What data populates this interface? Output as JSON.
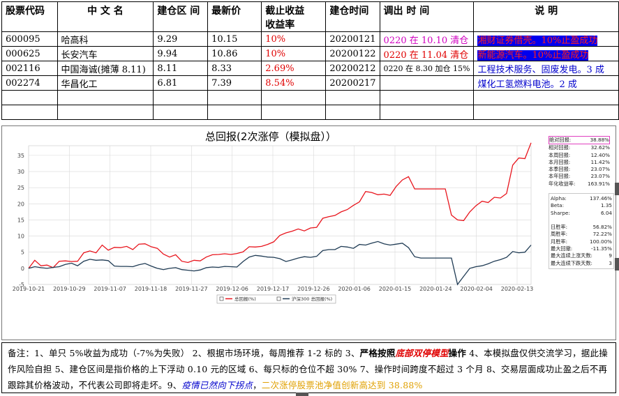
{
  "table": {
    "headers": [
      "股票代码",
      "中 文 名",
      "建仓区 间",
      "最新价",
      "截止收益",
      "收益率",
      "建仓时间",
      "调出 时 间",
      "说   明"
    ],
    "rows": [
      {
        "code": "600095",
        "name": "哈高科",
        "range": "9.29",
        "price": "10.15",
        "ret": "10%",
        "date": "20200121",
        "out": "0220 在 10.10 清仓",
        "desc": "湘财证券借壳。10%止盈成功"
      },
      {
        "code": "000625",
        "name": "长安汽车",
        "range": "9.94",
        "price": "10.86",
        "ret": "10%",
        "date": "20200122",
        "out": "0220 在 11.04 清仓",
        "desc": "新能源汽车。10%止盈成功"
      },
      {
        "code": "002116",
        "name": "中国海诚(摊薄 8.11)",
        "range": "8.11",
        "price": "8.33",
        "ret": "2.69%",
        "date": "20200212",
        "out": "0220 在 8.30 加仓 15%",
        "desc": "工程技术服务、固废发电。3 成"
      },
      {
        "code": "002274",
        "name": "华昌化工",
        "range": "6.81",
        "price": "7.39",
        "ret": "8.54%",
        "date": "20200217",
        "out": "",
        "desc": "煤化工氢燃料电池。2 成"
      }
    ]
  },
  "chart_data": {
    "type": "line",
    "title": "总回报(2次涨停（模拟盘））",
    "x_ticks": [
      "2019-10-21",
      "2019-10-29",
      "2019-11-07",
      "2019-11-18",
      "2019-11-27",
      "2019-12-06",
      "2019-12-17",
      "2019-12-26",
      "2020-01-06",
      "2020-01-15",
      "2020-01-24",
      "2020-02-04",
      "2020-02-13"
    ],
    "y_ticks": [
      -5,
      0,
      5,
      10,
      15,
      20,
      25,
      30,
      35
    ],
    "ylim": [
      -5,
      38
    ],
    "series": [
      {
        "name": "总回报(%)",
        "color": "#e8141c",
        "values": [
          0,
          2.5,
          0.8,
          1,
          0.2,
          2.2,
          2.3,
          2.1,
          2.2,
          4.8,
          5.4,
          4.8,
          7.2,
          5.6,
          6.5,
          6.4,
          6.8,
          5.8,
          7.5,
          7.6,
          6.7,
          6.2,
          4.4,
          3.5,
          4.2,
          2.2,
          1.8,
          2.5,
          2.3,
          3.5,
          4.2,
          4.3,
          4.5,
          4.3,
          4.6,
          5.1,
          6.7,
          6.6,
          6.8,
          7.4,
          8.2,
          10.2,
          11,
          11.5,
          12.2,
          11.6,
          12.5,
          12.7,
          15.5,
          16,
          16.4,
          17.5,
          18.2,
          19.5,
          20.6,
          23.8,
          23.5,
          22.8,
          23,
          22.6,
          25.4,
          27.4,
          28.4,
          24.6,
          24.6,
          24.6,
          24.6,
          24.6,
          24.6,
          16.5,
          15,
          14.8,
          17.5,
          19.4,
          20.8,
          20.4,
          22,
          21.8,
          23.2,
          32,
          34.2,
          34,
          38.9
        ]
      },
      {
        "name": "沪深300 总回报(%)",
        "color": "#1f3b54",
        "values": [
          0,
          0.5,
          0.2,
          0,
          0.3,
          0.5,
          1.2,
          1.6,
          0.8,
          2.2,
          2.8,
          2.5,
          2.6,
          2.4,
          0.7,
          0.6,
          0.6,
          0.5,
          1.1,
          1.5,
          0.7,
          0,
          -0.4,
          0,
          0.2,
          -0.4,
          -0.6,
          -0.8,
          -0.5,
          0.2,
          0.4,
          0.3,
          0.6,
          0.5,
          0.4,
          2.1,
          3.5,
          4,
          3.8,
          3.5,
          3.4,
          3,
          2.1,
          2.6,
          3.2,
          3.6,
          3.4,
          3.7,
          5.5,
          5.8,
          5.8,
          6.8,
          6.6,
          6.2,
          7.4,
          7.2,
          7.8,
          8.3,
          7.6,
          7.2,
          7.5,
          7.8,
          6.4,
          3.6,
          3.2,
          3.2,
          3.2,
          3.2,
          3.2,
          3.2,
          -5,
          -2.5,
          0,
          0.5,
          0.8,
          1.4,
          2.2,
          2.7,
          3.4,
          5.2,
          4.8,
          5,
          7.2
        ]
      }
    ],
    "legend": [
      "总回报(%)",
      "沪深300 总回报(%)"
    ],
    "stats": [
      {
        "label": "绝对回报:",
        "value": "38.88%"
      },
      {
        "label": "相对回报:",
        "value": "32.62%"
      },
      {
        "label": "本周回报:",
        "value": "12.40%"
      },
      {
        "label": "本月回报:",
        "value": "11.42%"
      },
      {
        "label": "本季回报:",
        "value": "23.07%"
      },
      {
        "label": "本年回报:",
        "value": "23.07%"
      },
      {
        "label": "年化收益率:",
        "value": "163.91%"
      }
    ],
    "risk": [
      {
        "label": "Alpha:",
        "value": "137.46%"
      },
      {
        "label": "Beta:",
        "value": "1.35"
      },
      {
        "label": "Sharpe:",
        "value": "6.04"
      },
      {
        "label": "",
        "value": ""
      },
      {
        "label": "日胜率:",
        "value": "56.82%"
      },
      {
        "label": "周胜率:",
        "value": "72.22%"
      },
      {
        "label": "月胜率:",
        "value": "100.00%"
      },
      {
        "label": "最大回撤:",
        "value": "-11.35%"
      },
      {
        "label": "最大连续上涨天数:",
        "value": "9"
      },
      {
        "label": "最大连续下跌天数:",
        "value": "3"
      }
    ]
  },
  "note": {
    "p1": "备注：1、单只 5%收益为成功（-7%为失败） 2、根据市场环境，每周推荐 1-2 标的 3、",
    "p2": "严格按照",
    "p3": "底部双停模型",
    "p4": "操作",
    "p5": " 4、本模拟盘仅供交流学习，据此操作风险自担 5、建仓区间是指价格的上下浮动 0.10 元的区域 6、每只标的仓位不超 30% 7、操作时间跨度不超过 3 个月 8、交易层面成功止盈之后不再跟踪其价格波动，不代表公司即将走坏。9、",
    "p6": "疫情已然向下拐点",
    "p7": "，",
    "p8": "二次涨停股票池净值创新高达到 38.88%"
  }
}
